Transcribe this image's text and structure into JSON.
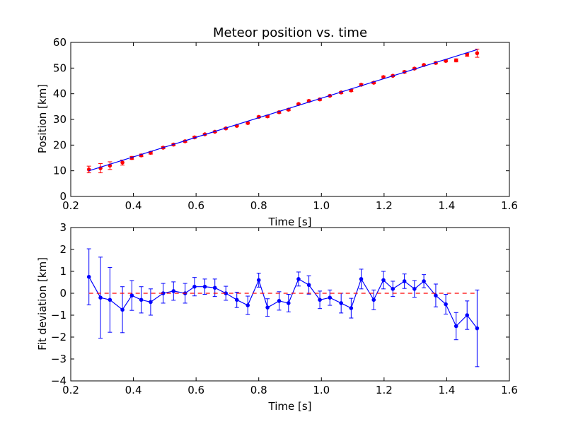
{
  "chart_data": [
    {
      "type": "scatter",
      "title": "Meteor position vs. time",
      "xlabel": "Time [s]",
      "ylabel": "Position [km]",
      "xlim": [
        0.2,
        1.6
      ],
      "ylim": [
        0,
        60
      ],
      "xticks": [
        "0.2",
        "0.4",
        "0.6",
        "0.8",
        "1.0",
        "1.2",
        "1.4",
        "1.6"
      ],
      "yticks": [
        "0",
        "10",
        "20",
        "30",
        "40",
        "50",
        "60"
      ],
      "grid": false,
      "series": [
        {
          "kind": "errorbar-points",
          "color": "#ff0000",
          "x": [
            0.258,
            0.295,
            0.325,
            0.365,
            0.395,
            0.425,
            0.455,
            0.495,
            0.528,
            0.565,
            0.595,
            0.628,
            0.66,
            0.695,
            0.73,
            0.765,
            0.8,
            0.828,
            0.865,
            0.895,
            0.927,
            0.96,
            0.995,
            1.027,
            1.063,
            1.095,
            1.127,
            1.167,
            1.198,
            1.228,
            1.265,
            1.297,
            1.327,
            1.365,
            1.397,
            1.43,
            1.465,
            1.497
          ],
          "y": [
            10.5,
            11.0,
            12.0,
            13.2,
            15.0,
            16.0,
            17.0,
            19.0,
            20.2,
            21.5,
            23.0,
            24.2,
            25.2,
            26.5,
            27.5,
            28.6,
            31.0,
            31.2,
            32.8,
            33.8,
            36.0,
            37.2,
            37.8,
            39.2,
            40.5,
            41.3,
            43.5,
            44.3,
            46.5,
            47.0,
            48.5,
            49.8,
            51.2,
            52.0,
            52.8,
            53.0,
            55.2,
            55.8
          ],
          "yerr": [
            1.3,
            1.8,
            1.5,
            1.0,
            0.6,
            0.5,
            0.5,
            0.4,
            0.4,
            0.4,
            0.4,
            0.3,
            0.3,
            0.3,
            0.3,
            0.4,
            0.3,
            0.4,
            0.4,
            0.4,
            0.3,
            0.4,
            0.4,
            0.3,
            0.4,
            0.4,
            0.4,
            0.4,
            0.4,
            0.3,
            0.4,
            0.3,
            0.3,
            0.4,
            0.4,
            0.6,
            0.6,
            1.6
          ]
        },
        {
          "kind": "fit-line",
          "color": "#0000ff",
          "x": [
            0.258,
            1.497
          ],
          "y": [
            10.0,
            57.2
          ]
        }
      ]
    },
    {
      "type": "line",
      "xlabel": "Time [s]",
      "ylabel": "Fit deviation [km]",
      "xlim": [
        0.2,
        1.6
      ],
      "ylim": [
        -4,
        3
      ],
      "xticks": [
        "0.2",
        "0.4",
        "0.6",
        "0.8",
        "1.0",
        "1.2",
        "1.4",
        "1.6"
      ],
      "yticks": [
        "−4",
        "−3",
        "−2",
        "−1",
        "0",
        "1",
        "2",
        "3"
      ],
      "grid": false,
      "series": [
        {
          "kind": "errorbar-line",
          "color": "#0000ff",
          "x": [
            0.258,
            0.295,
            0.325,
            0.365,
            0.395,
            0.425,
            0.455,
            0.495,
            0.528,
            0.565,
            0.595,
            0.628,
            0.66,
            0.695,
            0.73,
            0.765,
            0.8,
            0.828,
            0.865,
            0.895,
            0.927,
            0.96,
            0.995,
            1.027,
            1.063,
            1.095,
            1.127,
            1.167,
            1.198,
            1.228,
            1.265,
            1.297,
            1.327,
            1.365,
            1.397,
            1.43,
            1.465,
            1.497
          ],
          "y": [
            0.75,
            -0.2,
            -0.3,
            -0.75,
            -0.1,
            -0.3,
            -0.4,
            0.0,
            0.1,
            0.0,
            0.3,
            0.3,
            0.25,
            0.0,
            -0.3,
            -0.55,
            0.6,
            -0.65,
            -0.35,
            -0.45,
            0.65,
            0.38,
            -0.3,
            -0.2,
            -0.45,
            -0.68,
            0.65,
            -0.3,
            0.6,
            0.2,
            0.55,
            0.2,
            0.55,
            -0.1,
            -0.5,
            -1.5,
            -1.0,
            -1.6
          ],
          "yerr": [
            1.28,
            1.85,
            1.48,
            1.05,
            0.68,
            0.6,
            0.6,
            0.45,
            0.42,
            0.45,
            0.42,
            0.35,
            0.4,
            0.32,
            0.35,
            0.42,
            0.32,
            0.4,
            0.42,
            0.4,
            0.32,
            0.42,
            0.4,
            0.35,
            0.45,
            0.45,
            0.45,
            0.45,
            0.4,
            0.35,
            0.33,
            0.38,
            0.3,
            0.52,
            0.45,
            0.62,
            0.65,
            1.75
          ]
        },
        {
          "kind": "reference-line",
          "color": "#ff0000",
          "dash": "dashed",
          "y": 0
        }
      ]
    }
  ]
}
